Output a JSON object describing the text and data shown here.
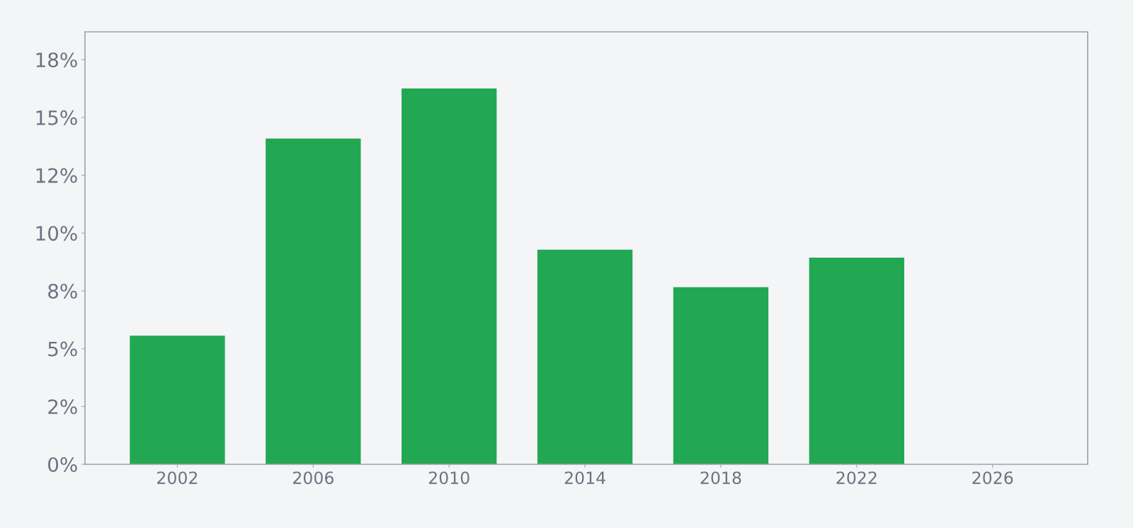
{
  "chart_data": {
    "type": "bar",
    "categories": [
      "2002",
      "2006",
      "2010",
      "2014",
      "2018",
      "2022",
      "2026"
    ],
    "values": [
      5.56,
      14.09,
      16.25,
      9.28,
      7.66,
      8.94,
      null
    ],
    "color": "#22a853",
    "ylim": [
      0,
      18.7
    ],
    "yticks": [
      {
        "value": 0,
        "label": "0%"
      },
      {
        "value": 2.5,
        "label": "2%"
      },
      {
        "value": 5,
        "label": "5%"
      },
      {
        "value": 7.5,
        "label": "8%"
      },
      {
        "value": 10,
        "label": "10%"
      },
      {
        "value": 12.5,
        "label": "12%"
      },
      {
        "value": 15,
        "label": "15%"
      },
      {
        "value": 17.5,
        "label": "18%"
      }
    ],
    "grid": false
  }
}
